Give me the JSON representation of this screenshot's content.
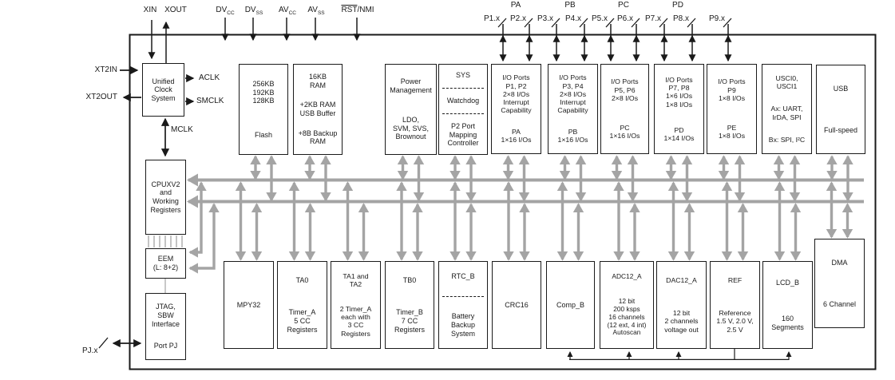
{
  "pins": {
    "left_top": [
      {
        "label": "XIN"
      },
      {
        "label": "XOUT"
      }
    ],
    "power": [
      {
        "base": "DV",
        "sub": "CC"
      },
      {
        "base": "DV",
        "sub": "SS"
      },
      {
        "base": "AV",
        "sub": "CC"
      },
      {
        "base": "AV",
        "sub": "SS"
      }
    ],
    "reset": {
      "overline": "RST",
      "rest": "/NMI"
    },
    "port_groups": [
      {
        "label": "PA"
      },
      {
        "label": "PB"
      },
      {
        "label": "PC"
      },
      {
        "label": "PD"
      }
    ],
    "port_pins": [
      {
        "label": "P1.x"
      },
      {
        "label": "P2.x"
      },
      {
        "label": "P3.x"
      },
      {
        "label": "P4.x"
      },
      {
        "label": "P5.x"
      },
      {
        "label": "P6.x"
      },
      {
        "label": "P7.x"
      },
      {
        "label": "P8.x"
      },
      {
        "label": "P9.x"
      }
    ],
    "side": [
      {
        "label": "XT2IN"
      },
      {
        "label": "XT2OUT"
      },
      {
        "label": "PJ.x"
      }
    ],
    "clocks": [
      {
        "label": "ACLK"
      },
      {
        "label": "SMCLK"
      },
      {
        "label": "MCLK"
      }
    ]
  },
  "blocks": {
    "ucs": {
      "segs": [
        "Unified\nClock\nSystem"
      ]
    },
    "flash": {
      "segs": [
        "256KB\n192KB\n128KB",
        "Flash"
      ]
    },
    "ram": {
      "segs": [
        "16KB\nRAM",
        "+2KB RAM\nUSB Buffer",
        "+8B Backup\nRAM"
      ]
    },
    "pm": {
      "segs": [
        "Power\nManagement",
        "LDO,\nSVM, SVS,\nBrownout"
      ]
    },
    "sys": {
      "segs": [
        "SYS",
        "Watchdog",
        "P2 Port\nMapping\nController"
      ]
    },
    "io12": {
      "segs": [
        "I/O Ports\nP1, P2\n2×8 I/Os\nInterrupt\nCapability",
        "PA\n1×16 I/Os"
      ]
    },
    "io34": {
      "segs": [
        "I/O Ports\nP3, P4\n2×8 I/Os\nInterrupt\nCapability",
        "PB\n1×16 I/Os"
      ]
    },
    "io56": {
      "segs": [
        "I/O Ports\nP5, P6\n2×8 I/Os",
        "PC\n1×16 I/Os"
      ]
    },
    "io78": {
      "segs": [
        "I/O Ports\nP7, P8\n1×6 I/Os\n1×8 I/Os",
        "PD\n1×14 I/Os"
      ]
    },
    "io9": {
      "segs": [
        "I/O Ports\nP9\n1×8 I/Os",
        "PE\n1×8 I/Os"
      ]
    },
    "usci": {
      "segs": [
        "USCI0,\nUSCI1",
        "Ax: UART,\nIrDA, SPI",
        "Bx: SPI, I²C"
      ]
    },
    "usb": {
      "segs": [
        "USB",
        "Full-speed"
      ]
    },
    "cpu": {
      "segs": [
        "CPUXV2\nand\nWorking\nRegisters"
      ]
    },
    "eem": {
      "segs": [
        "EEM\n(L: 8+2)"
      ]
    },
    "jtag": {
      "segs": [
        "JTAG,\nSBW\nInterface",
        "Port PJ"
      ]
    },
    "mpy": {
      "segs": [
        "MPY32"
      ]
    },
    "ta0": {
      "segs": [
        "TA0",
        "Timer_A\n5 CC\nRegisters"
      ]
    },
    "ta12": {
      "segs": [
        "TA1 and\nTA2",
        "2 Timer_A\neach with\n3 CC\nRegisters"
      ]
    },
    "tb0": {
      "segs": [
        "TB0",
        "Timer_B\n7 CC\nRegisters"
      ]
    },
    "rtc": {
      "segs": [
        "RTC_B",
        "Battery\nBackup\nSystem"
      ]
    },
    "crc": {
      "segs": [
        "CRC16"
      ]
    },
    "comp": {
      "segs": [
        "Comp_B"
      ]
    },
    "adc": {
      "segs": [
        "ADC12_A",
        "12 bit\n200 ksps\n16 channels\n(12 ext, 4 int)\nAutoscan"
      ]
    },
    "dac": {
      "segs": [
        "DAC12_A",
        "12 bit\n2 channels\nvoltage out"
      ]
    },
    "ref": {
      "segs": [
        "REF",
        "Reference\n1.5 V, 2.0 V,\n2.5 V"
      ]
    },
    "lcd": {
      "segs": [
        "LCD_B",
        "160\nSegments"
      ]
    },
    "dma": {
      "segs": [
        "DMA",
        "6 Channel"
      ]
    }
  }
}
